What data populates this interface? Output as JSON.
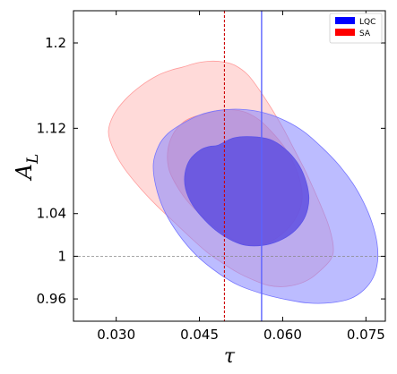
{
  "chart_data": {
    "type": "contour",
    "xlabel": "τ",
    "ylabel_main": "A",
    "ylabel_sub": "L",
    "xlim": [
      0.0223,
      0.0785
    ],
    "ylim": [
      0.9391,
      1.2302
    ],
    "xticks": [
      0.03,
      0.045,
      0.06,
      0.075
    ],
    "xtick_labels": [
      "0.030",
      "0.045",
      "0.060",
      "0.075"
    ],
    "yticks": [
      0.96,
      1.0,
      1.04,
      1.12,
      1.2
    ],
    "ytick_labels": [
      "0.96",
      "1",
      "1.04",
      "1.12",
      "1.2"
    ],
    "legend": {
      "position": "top-right",
      "entries": [
        {
          "label": "LQC",
          "color": "#0000ff"
        },
        {
          "label": "SA",
          "color": "#ff0000"
        }
      ]
    },
    "reference_lines": [
      {
        "orientation": "vertical",
        "x": 0.0562,
        "color": "#5c63ff",
        "style": "solid"
      },
      {
        "orientation": "vertical",
        "x": 0.0495,
        "color": "#cc0000",
        "style": "dashed"
      },
      {
        "orientation": "horizontal",
        "y": 1.0,
        "color": "#888888",
        "style": "dashed"
      }
    ],
    "series": [
      {
        "name": "SA",
        "color": "#ff0000",
        "contours": [
          {
            "level": "95%",
            "fill": "#ffdad9",
            "stroke": "#ff9c9c",
            "points": [
              [
                0.042,
                1.1774
              ],
              [
                0.0446,
                1.1813
              ],
              [
                0.047,
                1.1829
              ],
              [
                0.0494,
                1.1821
              ],
              [
                0.0514,
                1.179
              ],
              [
                0.0537,
                1.1702
              ],
              [
                0.0558,
                1.1559
              ],
              [
                0.0578,
                1.14
              ],
              [
                0.06,
                1.1208
              ],
              [
                0.0619,
                1.1019
              ],
              [
                0.0638,
                1.0829
              ],
              [
                0.0653,
                1.0662
              ],
              [
                0.0668,
                1.0483
              ],
              [
                0.0682,
                1.03
              ],
              [
                0.069,
                1.0139
              ],
              [
                0.0691,
                1.0031
              ],
              [
                0.0685,
                0.9958
              ],
              [
                0.067,
                0.9876
              ],
              [
                0.065,
                0.9791
              ],
              [
                0.0627,
                0.9738
              ],
              [
                0.06,
                0.9715
              ],
              [
                0.0574,
                0.9727
              ],
              [
                0.0547,
                0.9778
              ],
              [
                0.0518,
                0.985
              ],
              [
                0.049,
                0.9942
              ],
              [
                0.0463,
                1.0041
              ],
              [
                0.0434,
                1.0175
              ],
              [
                0.0404,
                1.0322
              ],
              [
                0.0371,
                1.0485
              ],
              [
                0.034,
                1.0658
              ],
              [
                0.0312,
                1.0843
              ],
              [
                0.0294,
                1.1013
              ],
              [
                0.0286,
                1.1169
              ],
              [
                0.0295,
                1.1322
              ],
              [
                0.0316,
                1.1468
              ],
              [
                0.0344,
                1.1596
              ],
              [
                0.0374,
                1.1694
              ],
              [
                0.04,
                1.1747
              ]
            ]
          },
          {
            "level": "68%",
            "fill": "#ffb3b2",
            "stroke": "#ff8f8f",
            "points": [
              [
                0.0455,
                1.1328
              ],
              [
                0.048,
                1.1364
              ],
              [
                0.0505,
                1.1375
              ],
              [
                0.0532,
                1.1352
              ],
              [
                0.0558,
                1.1278
              ],
              [
                0.0581,
                1.1162
              ],
              [
                0.0601,
                1.1037
              ],
              [
                0.0619,
                1.0879
              ],
              [
                0.0631,
                1.0708
              ],
              [
                0.0635,
                1.0545
              ],
              [
                0.0628,
                1.0404
              ],
              [
                0.0612,
                1.0275
              ],
              [
                0.059,
                1.0175
              ],
              [
                0.0565,
                1.0113
              ],
              [
                0.0539,
                1.0104
              ],
              [
                0.0513,
                1.0149
              ],
              [
                0.0487,
                1.0236
              ],
              [
                0.0459,
                1.0357
              ],
              [
                0.0431,
                1.05
              ],
              [
                0.041,
                1.0652
              ],
              [
                0.0395,
                1.0816
              ],
              [
                0.0393,
                1.0994
              ],
              [
                0.0403,
                1.115
              ],
              [
                0.0422,
                1.1261
              ],
              [
                0.044,
                1.1308
              ]
            ]
          }
        ]
      },
      {
        "name": "LQC",
        "color": "#0000ff",
        "contours": [
          {
            "level": "95%",
            "fill": "#8585ff",
            "fill_opacity": 0.55,
            "stroke": "#7777ff",
            "points": [
              [
                0.0417,
                1.1237
              ],
              [
                0.0449,
                1.1322
              ],
              [
                0.0483,
                1.1366
              ],
              [
                0.0523,
                1.1378
              ],
              [
                0.0566,
                1.1346
              ],
              [
                0.0605,
                1.127
              ],
              [
                0.0639,
                1.1165
              ],
              [
                0.067,
                1.1024
              ],
              [
                0.07,
                1.0863
              ],
              [
                0.0726,
                1.0686
              ],
              [
                0.0746,
                1.0503
              ],
              [
                0.0761,
                1.0314
              ],
              [
                0.077,
                1.0123
              ],
              [
                0.0771,
                0.9951
              ],
              [
                0.0763,
                0.98
              ],
              [
                0.0746,
                0.9683
              ],
              [
                0.0722,
                0.9603
              ],
              [
                0.0687,
                0.9564
              ],
              [
                0.0645,
                0.9562
              ],
              [
                0.0602,
                0.9599
              ],
              [
                0.0563,
                0.9649
              ],
              [
                0.0521,
                0.9727
              ],
              [
                0.0484,
                0.9842
              ],
              [
                0.0445,
                1.0006
              ],
              [
                0.0412,
                1.0208
              ],
              [
                0.0386,
                1.0435
              ],
              [
                0.0371,
                1.0667
              ],
              [
                0.0367,
                1.0871
              ],
              [
                0.0377,
                1.1041
              ],
              [
                0.0393,
                1.115
              ]
            ]
          },
          {
            "level": "68%",
            "fill": "#5f4fe0",
            "fill_opacity": 0.85,
            "stroke": "#5a52e8",
            "points": [
              [
                0.0484,
                1.1042
              ],
              [
                0.0512,
                1.111
              ],
              [
                0.0544,
                1.1121
              ],
              [
                0.0577,
                1.1095
              ],
              [
                0.0604,
                1.1008
              ],
              [
                0.0626,
                1.0881
              ],
              [
                0.064,
                1.0734
              ],
              [
                0.0647,
                1.0572
              ],
              [
                0.0645,
                1.0445
              ],
              [
                0.0636,
                1.0329
              ],
              [
                0.0618,
                1.0222
              ],
              [
                0.0593,
                1.0144
              ],
              [
                0.0564,
                1.0102
              ],
              [
                0.0534,
                1.0102
              ],
              [
                0.051,
                1.0144
              ],
              [
                0.0484,
                1.0225
              ],
              [
                0.046,
                1.0337
              ],
              [
                0.0438,
                1.0478
              ],
              [
                0.0425,
                1.0633
              ],
              [
                0.0424,
                1.0778
              ],
              [
                0.0433,
                1.0907
              ],
              [
                0.0452,
                1.0998
              ],
              [
                0.0468,
                1.1029
              ]
            ]
          }
        ]
      }
    ]
  }
}
